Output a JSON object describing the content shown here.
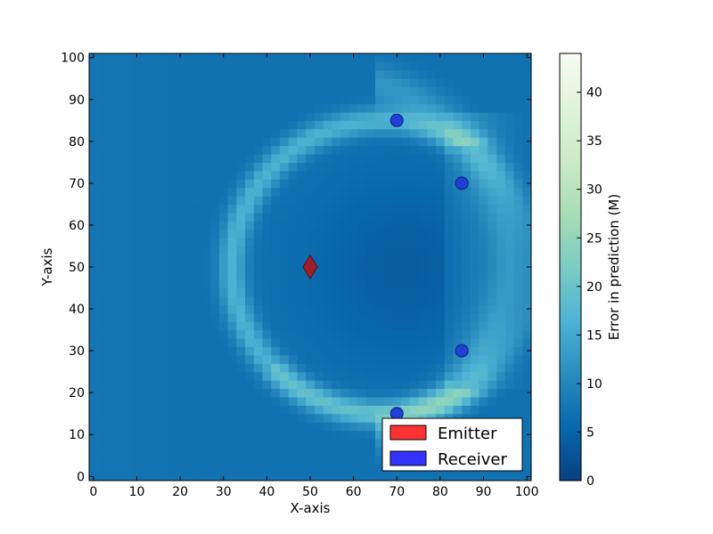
{
  "chart_data": {
    "type": "heatmap",
    "xlabel": "X-axis",
    "ylabel": "Y-axis",
    "xlim": [
      -1,
      101
    ],
    "ylim": [
      -1,
      101
    ],
    "x_ticks": [
      0,
      10,
      20,
      30,
      40,
      50,
      60,
      70,
      80,
      90,
      100
    ],
    "y_ticks": [
      0,
      10,
      20,
      30,
      40,
      50,
      60,
      70,
      80,
      90,
      100
    ],
    "colorbar": {
      "label": "Error in prediction (M)",
      "range": [
        0,
        44
      ],
      "ticks": [
        0,
        5,
        10,
        15,
        20,
        25,
        30,
        35,
        40
      ],
      "colormap": "GnBu_r",
      "colors": [
        "#084081",
        "#0868ac",
        "#2b8cbe",
        "#4eb3d3",
        "#7bccc4",
        "#a8ddb5",
        "#ccebc5",
        "#e0f3db",
        "#f7fcf0"
      ]
    },
    "heatmap_model": {
      "background": 7.0,
      "center_dip": {
        "x": 72,
        "y": 50,
        "radius": 22,
        "min": 4.0
      },
      "main_ring": {
        "x": 67,
        "y": 50,
        "radius": 35,
        "peak": 16.5,
        "bottom_peak": 19.5
      },
      "outer_ring": {
        "x": 52,
        "y": 52,
        "radius": 44,
        "peak": 13.5
      }
    },
    "legend": {
      "position": "lower-right",
      "entries": [
        {
          "label": "Emitter",
          "color": "#ff3333"
        },
        {
          "label": "Receiver",
          "color": "#3333ff"
        }
      ]
    },
    "series": [
      {
        "name": "Emitter",
        "marker": "diamond",
        "color": "#a01e2c",
        "points": [
          [
            50,
            50
          ]
        ]
      },
      {
        "name": "Receiver",
        "marker": "circle",
        "color": "#1f3fd6",
        "points": [
          [
            70,
            85
          ],
          [
            85,
            70
          ],
          [
            85,
            30
          ],
          [
            70,
            15
          ]
        ]
      }
    ]
  }
}
